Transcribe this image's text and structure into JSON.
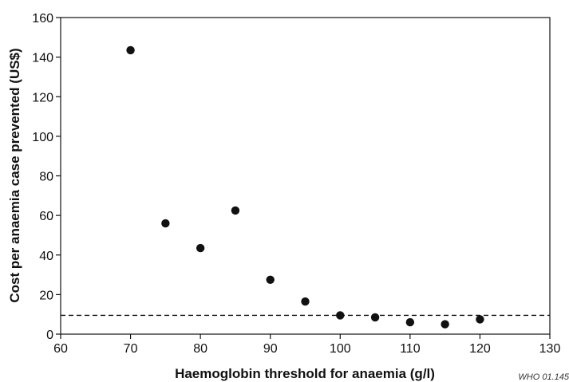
{
  "chart_data": {
    "type": "scatter",
    "title": "",
    "xlabel": "Haemoglobin threshold for anaemia (g/l)",
    "ylabel": "Cost per anaemia case prevented (US$)",
    "xlim": [
      60,
      130
    ],
    "ylim": [
      0,
      160
    ],
    "xticks": [
      60,
      70,
      80,
      90,
      100,
      110,
      120,
      130
    ],
    "yticks": [
      0,
      20,
      40,
      60,
      80,
      100,
      120,
      140,
      160
    ],
    "grid": false,
    "legend": "none",
    "series": [
      {
        "color": "#111111",
        "points": [
          {
            "x": 70,
            "y": 143.5
          },
          {
            "x": 75,
            "y": 56
          },
          {
            "x": 80,
            "y": 43.5
          },
          {
            "x": 85,
            "y": 62.5
          },
          {
            "x": 90,
            "y": 27.5
          },
          {
            "x": 95,
            "y": 16.5
          },
          {
            "x": 100,
            "y": 9.5
          },
          {
            "x": 105,
            "y": 8.5
          },
          {
            "x": 110,
            "y": 6
          },
          {
            "x": 115,
            "y": 5
          },
          {
            "x": 120,
            "y": 7.5
          }
        ]
      }
    ],
    "reference_line": {
      "y": 9.5,
      "style": "dashed"
    },
    "source_code": "WHO 01.145"
  }
}
